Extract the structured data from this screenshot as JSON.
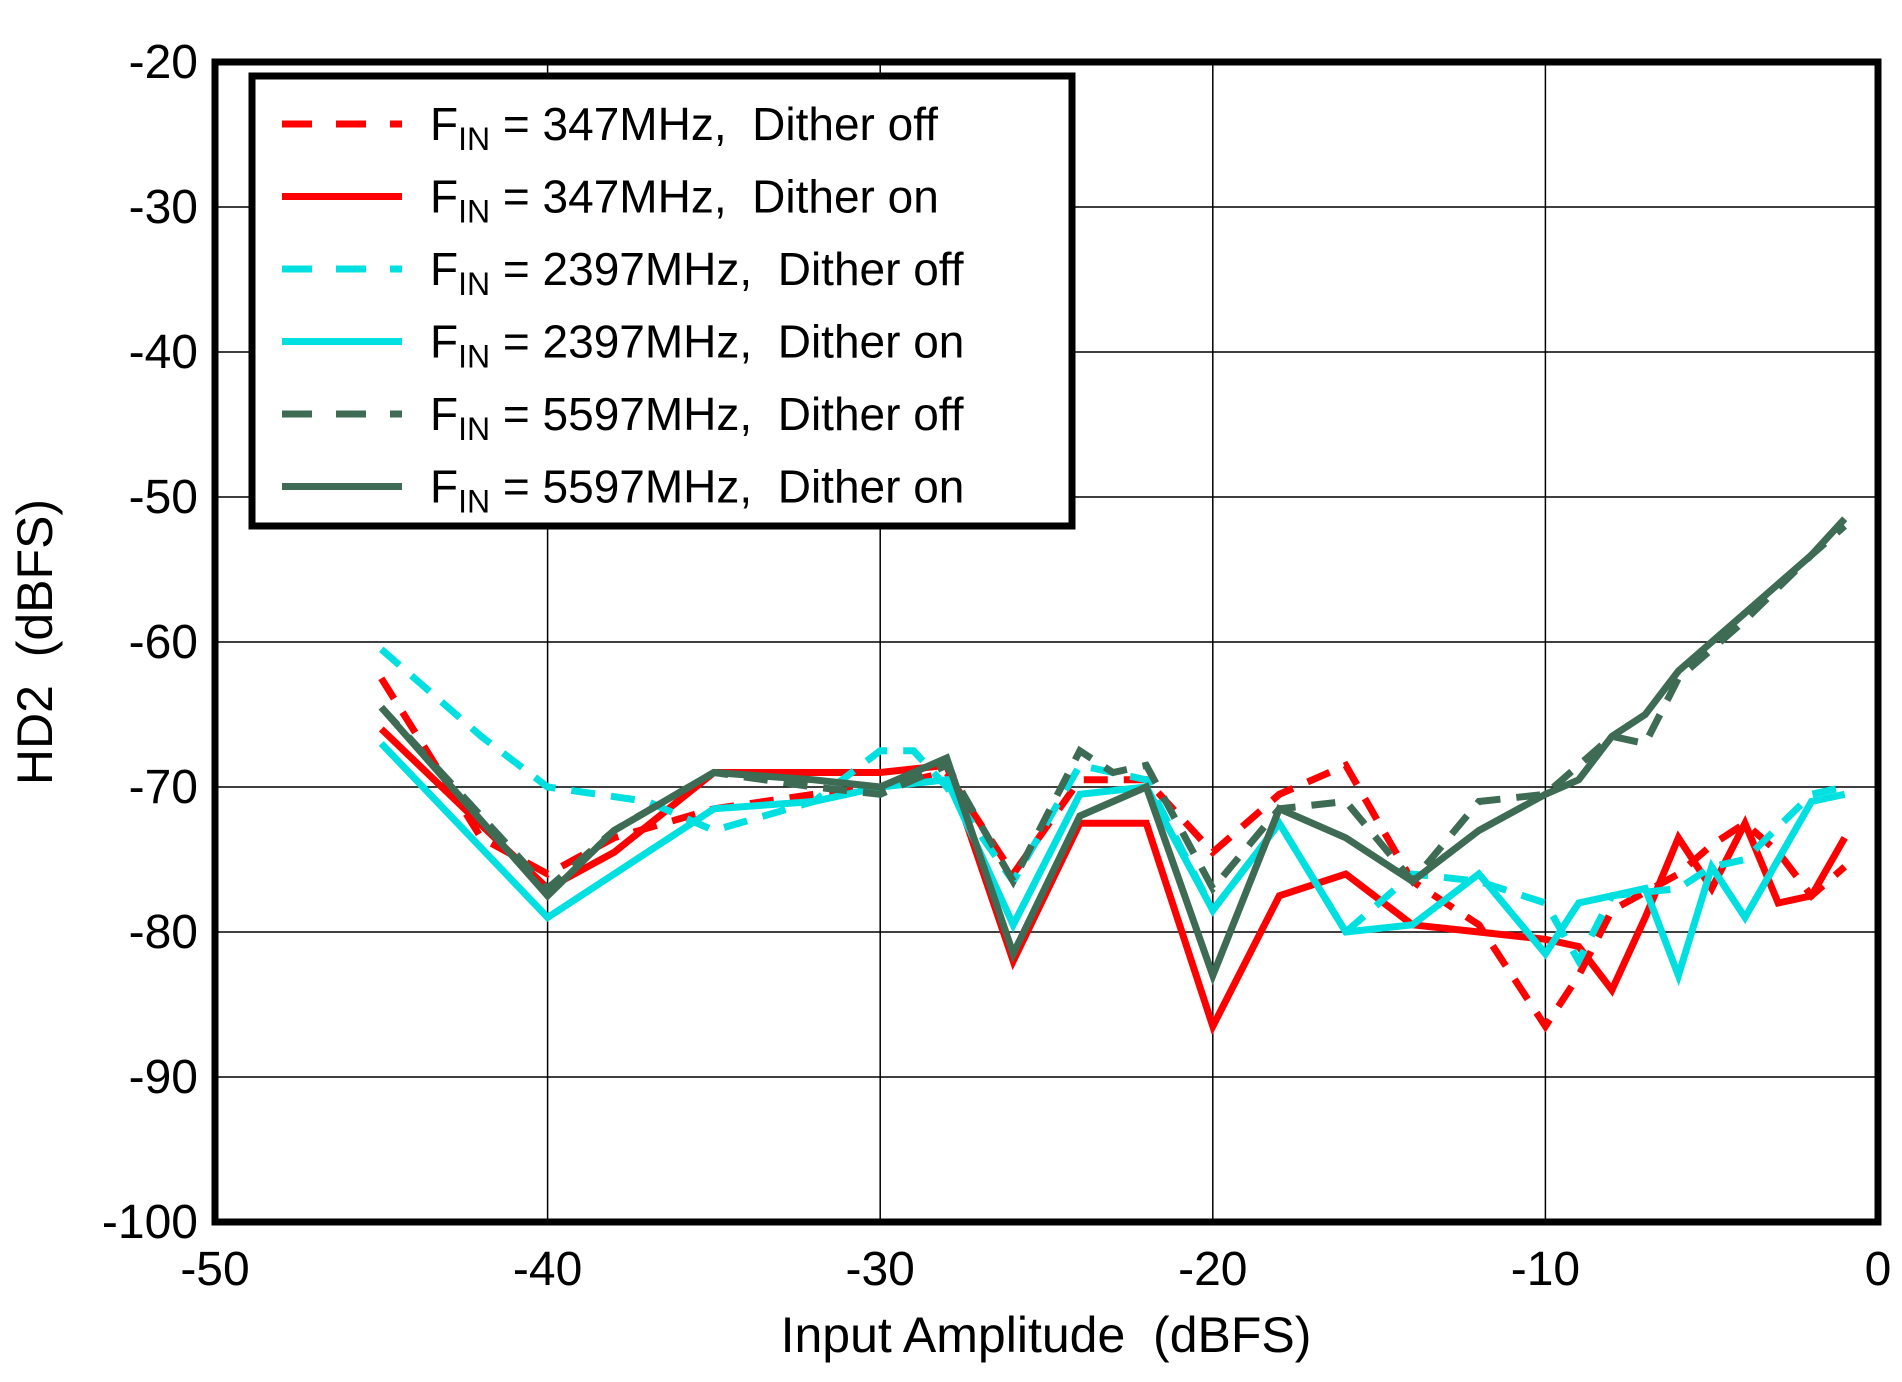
{
  "chart_data": {
    "type": "line",
    "title": "",
    "xlabel": "Input Amplitude  (dBFS)",
    "ylabel": "HD2  (dBFS)",
    "xlim": [
      -50,
      0
    ],
    "ylim": [
      -100,
      -20
    ],
    "xticks": [
      -50,
      -40,
      -30,
      -20,
      -10,
      0
    ],
    "yticks": [
      -100,
      -90,
      -80,
      -70,
      -60,
      -50,
      -40,
      -30,
      -20
    ],
    "grid": true,
    "legend_position": "top-left",
    "series": [
      {
        "id": "fin-347mhz-dither-off",
        "name": "FIN = 347MHz, Dither off",
        "label_f": "F",
        "label_sub": "IN",
        "label_rest": " = 347MHz,  Dither off",
        "color": "#FF0000",
        "dashed": true,
        "x": [
          -45,
          -42,
          -40,
          -38,
          -35,
          -32,
          -30,
          -28,
          -26,
          -24,
          -22,
          -20,
          -18,
          -16,
          -14,
          -12,
          -10,
          -9,
          -8,
          -6,
          -5,
          -4,
          -3,
          -2,
          -1
        ],
        "y": [
          -62.5,
          -73.5,
          -76,
          -73.5,
          -71.5,
          -70.5,
          -70,
          -69,
          -76,
          -69.5,
          -69.5,
          -74.5,
          -70.5,
          -68.5,
          -76.5,
          -79.5,
          -86.5,
          -83,
          -78.5,
          -76,
          -74,
          -72.5,
          -74.5,
          -77.5,
          -75.5
        ]
      },
      {
        "id": "fin-347mhz-dither-on",
        "name": "FIN = 347MHz, Dither on",
        "label_f": "F",
        "label_sub": "IN",
        "label_rest": " = 347MHz,  Dither on",
        "color": "#FF0000",
        "dashed": false,
        "x": [
          -45,
          -40,
          -38,
          -35,
          -32,
          -30,
          -28,
          -26,
          -24,
          -22,
          -20,
          -18,
          -16,
          -14,
          -12,
          -10,
          -9,
          -8,
          -7,
          -6,
          -5,
          -4,
          -3,
          -2,
          -1
        ],
        "y": [
          -66,
          -77,
          -74.5,
          -69,
          -69,
          -69,
          -68.5,
          -82,
          -72.5,
          -72.5,
          -86.5,
          -77.5,
          -76,
          -79.5,
          -80,
          -80.5,
          -81,
          -84,
          -79,
          -73.5,
          -77,
          -72.5,
          -78,
          -77.5,
          -73.5
        ]
      },
      {
        "id": "fin-2397mhz-dither-off",
        "name": "FIN = 2397MHz, Dither off",
        "label_f": "F",
        "label_sub": "IN",
        "label_rest": " = 2397MHz,  Dither off",
        "color": "#00E0E0",
        "dashed": true,
        "x": [
          -45,
          -42,
          -40,
          -37,
          -35,
          -32,
          -30,
          -29,
          -28,
          -26,
          -24,
          -22,
          -20,
          -18,
          -16,
          -14,
          -12,
          -10,
          -9,
          -8,
          -6,
          -5,
          -4,
          -2,
          -1
        ],
        "y": [
          -60.5,
          -66.5,
          -70,
          -71,
          -73,
          -71,
          -67.5,
          -67.5,
          -70,
          -76.5,
          -68.5,
          -69.5,
          -78.5,
          -72.5,
          -80,
          -76,
          -76.5,
          -78,
          -82,
          -77.5,
          -77,
          -75.5,
          -75,
          -70.5,
          -70
        ]
      },
      {
        "id": "fin-2397mhz-dither-on",
        "name": "FIN = 2397MHz, Dither on",
        "label_f": "F",
        "label_sub": "IN",
        "label_rest": " = 2397MHz,  Dither on",
        "color": "#00E0E0",
        "dashed": false,
        "x": [
          -45,
          -40,
          -38,
          -35,
          -32,
          -30,
          -28,
          -26,
          -24,
          -22,
          -20,
          -18,
          -16,
          -14,
          -12,
          -10,
          -9,
          -8,
          -7,
          -6,
          -5,
          -4,
          -2,
          -1
        ],
        "y": [
          -67,
          -79,
          -76,
          -71.5,
          -71,
          -70,
          -69.5,
          -79.5,
          -70.5,
          -70,
          -78.5,
          -72.5,
          -80,
          -79.5,
          -76,
          -81.5,
          -78,
          -77.5,
          -77,
          -83,
          -75.5,
          -79,
          -71,
          -70.5
        ]
      },
      {
        "id": "fin-5597mhz-dither-off",
        "name": "FIN = 5597MHz, Dither off",
        "label_f": "F",
        "label_sub": "IN",
        "label_rest": " = 5597MHz,  Dither off",
        "color": "#3E6B54",
        "dashed": true,
        "x": [
          -45,
          -40,
          -38,
          -35,
          -32,
          -30,
          -28,
          -26,
          -24,
          -23,
          -22,
          -20,
          -18,
          -16,
          -14,
          -12,
          -10,
          -8,
          -7,
          -6,
          -4,
          -2,
          -1
        ],
        "y": [
          -64.5,
          -77,
          -73,
          -69,
          -70,
          -70.5,
          -68.5,
          -76.5,
          -67.5,
          -69,
          -68.5,
          -77,
          -71.5,
          -71,
          -76.5,
          -71,
          -70.5,
          -66.5,
          -67,
          -62.5,
          -58.5,
          -54,
          -52
        ]
      },
      {
        "id": "fin-5597mhz-dither-on",
        "name": "FIN = 5597MHz, Dither on",
        "label_f": "F",
        "label_sub": "IN",
        "label_rest": " = 5597MHz,  Dither on",
        "color": "#3E6B54",
        "dashed": false,
        "x": [
          -45,
          -40,
          -38,
          -35,
          -32,
          -30,
          -28,
          -26,
          -24,
          -22,
          -20,
          -18,
          -16,
          -14,
          -12,
          -10,
          -9,
          -8,
          -7,
          -6,
          -5,
          -4,
          -3,
          -2,
          -1
        ],
        "y": [
          -64.5,
          -77.5,
          -73,
          -69,
          -69.5,
          -70,
          -68,
          -81.5,
          -72,
          -70,
          -83,
          -71.5,
          -73.5,
          -76.5,
          -73,
          -70.5,
          -69.5,
          -66.5,
          -65,
          -62,
          -60,
          -58,
          -56,
          -54,
          -51.5
        ]
      }
    ],
    "style": {
      "grid_color": "#000000",
      "border_color": "#000000",
      "background": "#ffffff",
      "line_width": 7,
      "dash_pattern": "24 16"
    }
  }
}
